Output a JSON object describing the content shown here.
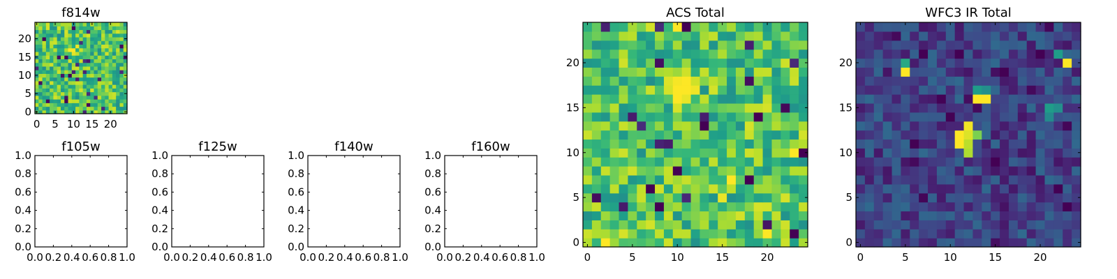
{
  "colormap": "viridis",
  "chart_data": [
    {
      "id": "f814w",
      "type": "heatmap",
      "title": "f814w",
      "grid_size": 25,
      "x_ticks": [
        "0",
        "5",
        "10",
        "15",
        "20"
      ],
      "y_ticks": [
        "0",
        "5",
        "10",
        "15",
        "20"
      ],
      "xlim": [
        -0.5,
        24.5
      ],
      "ylim": [
        -0.5,
        24.5
      ],
      "seed": 814,
      "base_level": 0.72,
      "noise_level": 0.22,
      "spikes": [
        [
          9,
          17,
          1.0
        ],
        [
          10,
          17,
          1.0
        ],
        [
          11,
          18,
          0.98
        ],
        [
          10,
          16,
          0.96
        ],
        [
          12,
          17,
          0.92
        ]
      ]
    },
    {
      "id": "f105w",
      "type": "empty",
      "title": "f105w",
      "x_ticks": [
        "0.0",
        "0.2",
        "0.4",
        "0.6",
        "0.8",
        "1.0"
      ],
      "y_ticks": [
        "0.0",
        "0.2",
        "0.4",
        "0.6",
        "0.8",
        "1.0"
      ],
      "xlim": [
        0,
        1
      ],
      "ylim": [
        0,
        1
      ]
    },
    {
      "id": "f125w",
      "type": "empty",
      "title": "f125w",
      "x_ticks": [
        "0.0",
        "0.2",
        "0.4",
        "0.6",
        "0.8",
        "1.0"
      ],
      "y_ticks": [
        "0.0",
        "0.2",
        "0.4",
        "0.6",
        "0.8",
        "1.0"
      ],
      "xlim": [
        0,
        1
      ],
      "ylim": [
        0,
        1
      ]
    },
    {
      "id": "f140w",
      "type": "empty",
      "title": "f140w",
      "x_ticks": [
        "0.0",
        "0.2",
        "0.4",
        "0.6",
        "0.8",
        "1.0"
      ],
      "y_ticks": [
        "0.0",
        "0.2",
        "0.4",
        "0.6",
        "0.8",
        "1.0"
      ],
      "xlim": [
        0,
        1
      ],
      "ylim": [
        0,
        1
      ]
    },
    {
      "id": "f160w",
      "type": "empty",
      "title": "f160w",
      "x_ticks": [
        "0.0",
        "0.2",
        "0.4",
        "0.6",
        "0.8",
        "1.0"
      ],
      "y_ticks": [
        "0.0",
        "0.2",
        "0.4",
        "0.6",
        "0.8",
        "1.0"
      ],
      "xlim": [
        0,
        1
      ],
      "ylim": [
        0,
        1
      ]
    },
    {
      "id": "acs-total",
      "type": "heatmap",
      "title": "ACS Total",
      "grid_size": 25,
      "x_ticks": [
        "0",
        "5",
        "10",
        "15",
        "20"
      ],
      "y_ticks": [
        "0",
        "5",
        "10",
        "15",
        "20"
      ],
      "xlim": [
        -0.5,
        24.5
      ],
      "ylim": [
        -0.5,
        24.5
      ],
      "seed": 4242,
      "base_level": 0.72,
      "noise_level": 0.22,
      "spikes": [
        [
          10,
          17,
          1.0
        ],
        [
          11,
          17,
          1.0
        ],
        [
          12,
          17,
          0.98
        ],
        [
          10,
          16,
          1.0
        ],
        [
          11,
          16,
          0.97
        ],
        [
          9,
          18,
          0.95
        ],
        [
          10,
          18,
          0.99
        ],
        [
          11,
          18,
          1.0
        ],
        [
          12,
          18,
          0.93
        ],
        [
          10,
          15,
          0.94
        ],
        [
          11,
          19,
          0.93
        ],
        [
          10,
          24,
          1.0
        ],
        [
          2,
          0,
          1.0
        ],
        [
          20,
          1,
          1.0
        ],
        [
          23,
          10,
          1.0
        ],
        [
          16,
          7,
          1.0
        ],
        [
          15,
          5,
          0.97
        ]
      ],
      "dips": [
        [
          11,
          24,
          0.0
        ],
        [
          19,
          14,
          0.0
        ],
        [
          22,
          15,
          0.02
        ],
        [
          13,
          13,
          0.0
        ],
        [
          7,
          6,
          0.0
        ],
        [
          8,
          4,
          0.0
        ],
        [
          10,
          8,
          0.0
        ],
        [
          18,
          7,
          0.0
        ],
        [
          24,
          10,
          0.0
        ],
        [
          23,
          1,
          0.0
        ],
        [
          1,
          5,
          0.03
        ],
        [
          20,
          2,
          0.05
        ]
      ]
    },
    {
      "id": "wfc3-ir-total",
      "type": "heatmap",
      "title": "WFC3 IR Total",
      "grid_size": 25,
      "x_ticks": [
        "0",
        "5",
        "10",
        "15",
        "20"
      ],
      "y_ticks": [
        "0",
        "5",
        "10",
        "15",
        "20"
      ],
      "xlim": [
        -0.5,
        24.5
      ],
      "ylim": [
        -0.5,
        24.5
      ],
      "seed": 303,
      "base_level": 0.2,
      "noise_level": 0.14,
      "spikes": [
        [
          11,
          12,
          1.0
        ],
        [
          12,
          12,
          0.95
        ],
        [
          12,
          13,
          0.98
        ],
        [
          11,
          11,
          1.0
        ],
        [
          12,
          11,
          0.9
        ],
        [
          13,
          12,
          0.8
        ],
        [
          12,
          10,
          0.88
        ],
        [
          13,
          16,
          1.0
        ],
        [
          14,
          16,
          1.0
        ],
        [
          13,
          17,
          0.55
        ],
        [
          14,
          17,
          0.5
        ],
        [
          5,
          19,
          1.0
        ],
        [
          5,
          20,
          0.6
        ],
        [
          23,
          20,
          1.0
        ],
        [
          22,
          21,
          0.55
        ],
        [
          21,
          15,
          0.55
        ],
        [
          22,
          15,
          0.5
        ],
        [
          21,
          14,
          0.48
        ]
      ],
      "dips": [
        [
          7,
          21,
          0.0
        ],
        [
          11,
          21,
          0.0
        ],
        [
          16,
          19,
          0.0
        ],
        [
          20,
          21,
          0.0
        ],
        [
          22,
          6,
          0.0
        ],
        [
          23,
          4,
          0.0
        ],
        [
          6,
          11,
          0.0
        ],
        [
          10,
          14,
          0.0
        ],
        [
          15,
          9,
          0.0
        ]
      ]
    }
  ]
}
